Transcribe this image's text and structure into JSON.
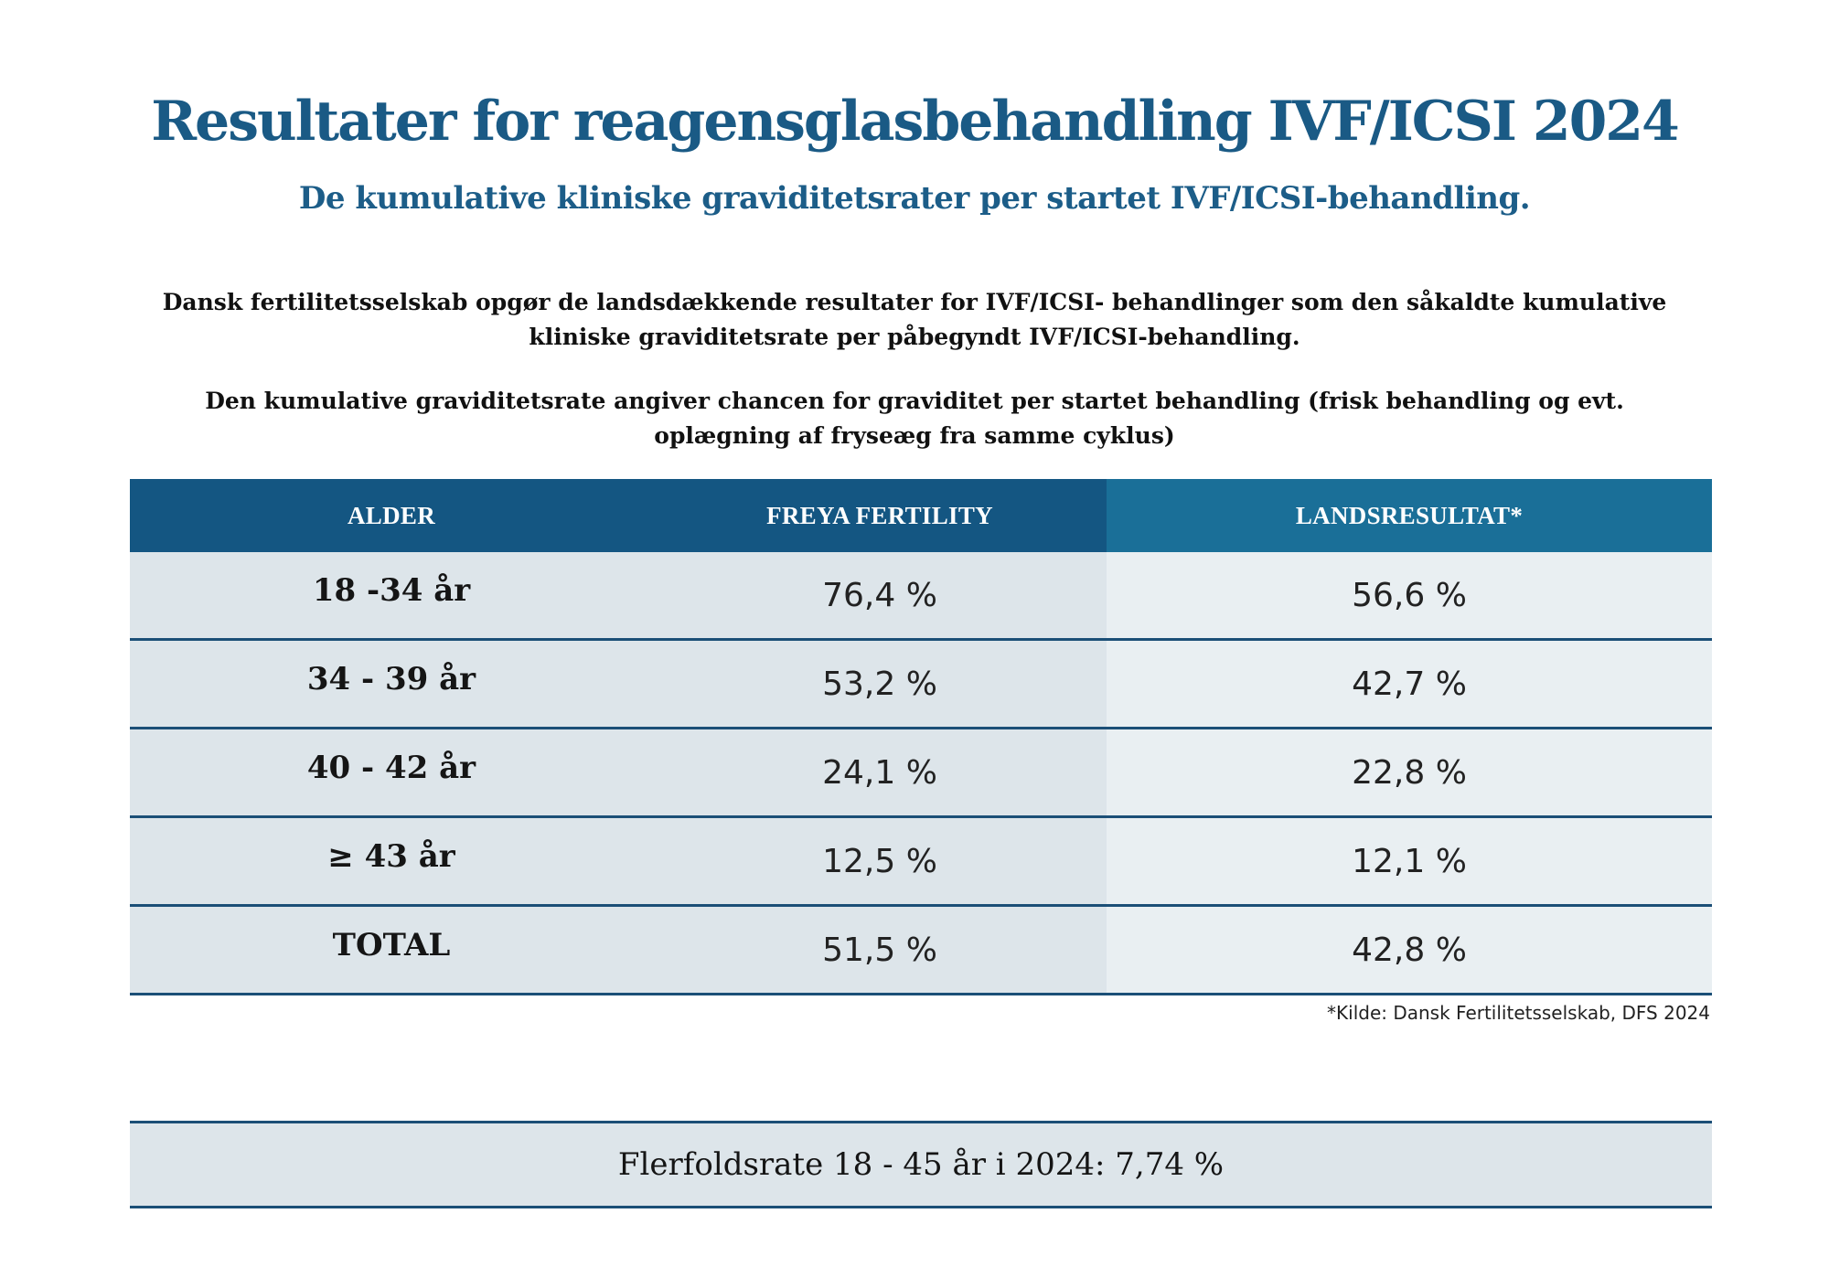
{
  "title": "Resultater for reagensglasbehandling IVF/ICSI 2024",
  "subtitle": "De kumulative kliniske graviditetsrater per startet IVF/ICSI-behandling.",
  "intro": {
    "paragraph1": "Dansk fertilitetsselskab opgør de landsdækkende resultater for IVF/ICSI- behandlinger som den såkaldte kumulative kliniske graviditetsrate per påbegyndt IVF/ICSI-behandling.",
    "paragraph2": "Den kumulative graviditetsrate angiver chancen for graviditet per startet behandling (frisk behandling og evt. oplægning af fryseæg fra samme cyklus)"
  },
  "table": {
    "headers": {
      "age": "ALDER",
      "freya": "FREYA FERTILITY",
      "national": "LANDSRESULTAT*"
    },
    "rows": [
      {
        "age": "18 -34 år",
        "freya": "76,4 %",
        "national": "56,6 %"
      },
      {
        "age": "34 - 39 år",
        "freya": "53,2 %",
        "national": "42,7 %"
      },
      {
        "age": "40 - 42 år",
        "freya": "24,1 %",
        "national": "22,8 %"
      },
      {
        "age": "≥ 43  år",
        "freya": "12,5 %",
        "national": "12,1 %"
      },
      {
        "age": "TOTAL",
        "freya": "51,5 %",
        "national": "42,8 %"
      }
    ]
  },
  "footnote": "*Kilde: Dansk Fertilitetsselskab, DFS 2024",
  "summary": "Flerfoldsrate 18 - 45 år i 2024: 7,74 %",
  "colors": {
    "title": "#1a5a85",
    "header_dark": "#145682",
    "header_light": "#1a6f98",
    "row_shade": "#dde5ea",
    "row_light": "#e9eff2",
    "divider": "#1b4f77"
  }
}
